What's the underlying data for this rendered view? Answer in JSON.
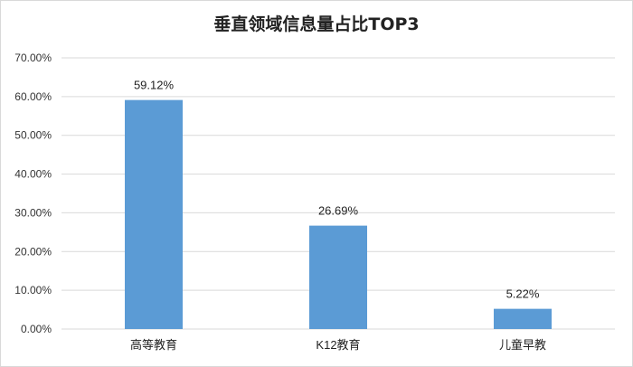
{
  "chart_data": {
    "type": "bar",
    "title": "垂直领域信息量占比TOP3",
    "categories": [
      "高等教育",
      "K12教育",
      "儿童早教"
    ],
    "values": [
      59.12,
      26.69,
      5.22
    ],
    "data_labels": [
      "59.12%",
      "26.69%",
      "5.22%"
    ],
    "ylim": [
      0,
      70
    ],
    "yticks": [
      0,
      10,
      20,
      30,
      40,
      50,
      60,
      70
    ],
    "ytick_labels": [
      "0.00%",
      "10.00%",
      "20.00%",
      "30.00%",
      "40.00%",
      "50.00%",
      "60.00%",
      "70.00%"
    ],
    "grid": true,
    "bar_color": "#5b9bd5",
    "grid_color": "#d9d9d9"
  }
}
